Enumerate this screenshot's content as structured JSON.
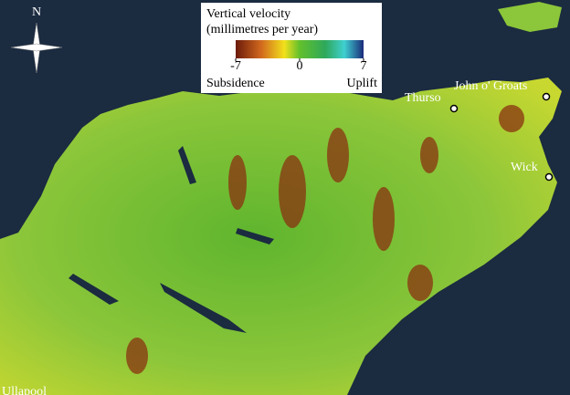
{
  "compass": {
    "label": "N"
  },
  "legend": {
    "title": [
      "Vertical velocity",
      "(millimetres per year)"
    ],
    "range": [
      -7,
      7
    ],
    "ticks": [
      -7,
      0,
      7
    ],
    "low_label": "Subsidence",
    "high_label": "Uplift"
  },
  "places": [
    {
      "label": "Thurso"
    },
    {
      "label": "John o' Groats"
    },
    {
      "label": "Wick"
    },
    {
      "label": "Ullapool"
    }
  ]
}
